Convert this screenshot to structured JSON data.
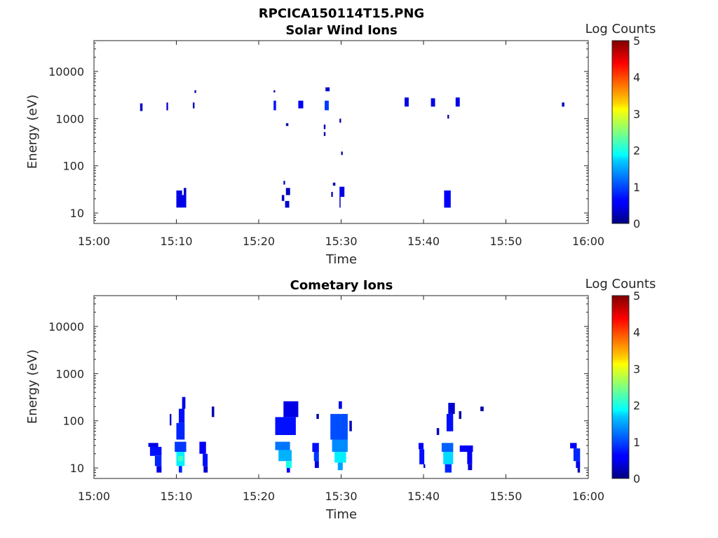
{
  "figure_title": "RPCICA150114T15.PNG",
  "colorbar": {
    "label": "Log Counts",
    "ticks": [
      "0",
      "1",
      "2",
      "3",
      "4",
      "5"
    ],
    "range": [
      0,
      5
    ],
    "colormap": "jet"
  },
  "chart_data": [
    {
      "type": "heatmap",
      "title": "Solar Wind Ions",
      "xlabel": "Time",
      "ylabel": "Energy (eV)",
      "x_ticklabels": [
        "15:00",
        "15:10",
        "15:20",
        "15:30",
        "15:40",
        "15:50",
        "16:00"
      ],
      "xlim_minutes": [
        0,
        60
      ],
      "y_ticklabels": [
        "10",
        "100",
        "1000",
        "10000"
      ],
      "ylim": [
        6,
        45000
      ],
      "yscale": "log",
      "cells": [
        [
          5.6,
          5.9,
          1700,
          2100,
          0.4
        ],
        [
          5.6,
          5.9,
          1450,
          1700,
          0.3
        ],
        [
          8.8,
          9.0,
          1500,
          2200,
          0.4
        ],
        [
          12.0,
          12.2,
          1650,
          2200,
          0.3
        ],
        [
          12.2,
          12.4,
          3500,
          4000,
          0.2
        ],
        [
          21.8,
          22.1,
          1500,
          2400,
          0.7
        ],
        [
          21.8,
          22.0,
          3600,
          4000,
          0.2
        ],
        [
          24.8,
          25.4,
          1650,
          2400,
          0.6
        ],
        [
          28.0,
          28.5,
          1500,
          2400,
          0.9
        ],
        [
          28.1,
          28.6,
          3800,
          4600,
          0.4
        ],
        [
          27.9,
          28.1,
          600,
          750,
          0.2
        ],
        [
          27.9,
          28.1,
          430,
          520,
          0.2
        ],
        [
          29.8,
          30.0,
          820,
          1000,
          0.2
        ],
        [
          30.0,
          30.2,
          170,
          200,
          0.2
        ],
        [
          23.3,
          23.6,
          700,
          800,
          0.2
        ],
        [
          37.7,
          38.2,
          1800,
          2800,
          0.5
        ],
        [
          40.9,
          41.4,
          1800,
          2700,
          0.5
        ],
        [
          42.9,
          43.1,
          1000,
          1200,
          0.2
        ],
        [
          43.9,
          44.4,
          1800,
          2800,
          0.5
        ],
        [
          56.8,
          57.1,
          1800,
          2200,
          0.3
        ],
        [
          10.0,
          10.7,
          24,
          30,
          0.5
        ],
        [
          10.0,
          11.2,
          13,
          24,
          0.5
        ],
        [
          10.9,
          11.2,
          24,
          34,
          0.4
        ],
        [
          22.8,
          23.1,
          18,
          24,
          0.3
        ],
        [
          23.2,
          23.7,
          13,
          18,
          0.4
        ],
        [
          23.3,
          23.8,
          24,
          34,
          0.3
        ],
        [
          23.0,
          23.2,
          40,
          48,
          0.2
        ],
        [
          28.8,
          29.0,
          22,
          28,
          0.2
        ],
        [
          29.0,
          29.3,
          38,
          44,
          0.2
        ],
        [
          29.8,
          30.4,
          22,
          36,
          0.5
        ],
        [
          29.8,
          29.9,
          13,
          22,
          0.3
        ],
        [
          42.5,
          43.3,
          13,
          30,
          0.6
        ]
      ]
    },
    {
      "type": "heatmap",
      "title": "Cometary Ions",
      "xlabel": "Time",
      "ylabel": "Energy (eV)",
      "x_ticklabels": [
        "15:00",
        "15:10",
        "15:20",
        "15:30",
        "15:40",
        "15:50",
        "16:00"
      ],
      "xlim_minutes": [
        0,
        60
      ],
      "y_ticklabels": [
        "10",
        "100",
        "1000",
        "10000"
      ],
      "ylim": [
        6,
        45000
      ],
      "yscale": "log",
      "cells": [
        [
          6.6,
          7.8,
          28,
          34,
          0.5
        ],
        [
          6.8,
          8.2,
          18,
          28,
          0.7
        ],
        [
          7.4,
          8.2,
          11,
          18,
          0.8
        ],
        [
          7.6,
          8.2,
          8,
          11,
          0.5
        ],
        [
          9.8,
          11.2,
          22,
          36,
          0.9
        ],
        [
          10.0,
          11.0,
          11,
          22,
          1.8
        ],
        [
          10.2,
          10.8,
          14,
          18,
          2.2
        ],
        [
          10.3,
          10.7,
          8,
          11,
          0.8
        ],
        [
          10.0,
          11.0,
          40,
          90,
          0.8
        ],
        [
          10.3,
          11.0,
          90,
          180,
          0.7
        ],
        [
          10.7,
          11.1,
          180,
          320,
          0.5
        ],
        [
          9.2,
          9.4,
          80,
          140,
          0.3
        ],
        [
          12.8,
          13.6,
          20,
          36,
          0.6
        ],
        [
          13.2,
          13.8,
          11,
          20,
          0.7
        ],
        [
          13.3,
          13.8,
          8,
          11,
          0.4
        ],
        [
          14.3,
          14.6,
          120,
          200,
          0.2
        ],
        [
          22.0,
          23.8,
          24,
          36,
          1.2
        ],
        [
          22.4,
          24.0,
          14,
          24,
          1.5
        ],
        [
          23.3,
          24.0,
          10,
          14,
          2.0
        ],
        [
          23.4,
          23.8,
          8,
          10,
          0.6
        ],
        [
          22.0,
          24.5,
          50,
          120,
          0.7
        ],
        [
          23.0,
          24.8,
          120,
          260,
          0.5
        ],
        [
          26.5,
          27.3,
          22,
          34,
          0.7
        ],
        [
          26.7,
          27.3,
          14,
          22,
          0.9
        ],
        [
          26.8,
          27.3,
          10,
          14,
          0.5
        ],
        [
          28.7,
          30.8,
          40,
          140,
          1.0
        ],
        [
          28.9,
          30.8,
          22,
          40,
          1.3
        ],
        [
          29.2,
          30.6,
          13,
          22,
          1.8
        ],
        [
          29.6,
          30.2,
          9,
          13,
          1.4
        ],
        [
          29.7,
          30.1,
          180,
          260,
          0.5
        ],
        [
          31.0,
          31.3,
          60,
          100,
          0.3
        ],
        [
          27.0,
          27.3,
          110,
          140,
          0.2
        ],
        [
          39.4,
          40.0,
          25,
          34,
          0.6
        ],
        [
          39.5,
          40.1,
          12,
          25,
          0.7
        ],
        [
          40.0,
          40.2,
          10,
          12,
          0.4
        ],
        [
          41.6,
          41.9,
          50,
          70,
          0.3
        ],
        [
          42.2,
          43.6,
          22,
          34,
          1.1
        ],
        [
          42.4,
          43.6,
          12,
          22,
          1.7
        ],
        [
          42.6,
          43.4,
          8,
          12,
          0.8
        ],
        [
          42.8,
          43.6,
          60,
          140,
          0.7
        ],
        [
          43.0,
          43.8,
          140,
          240,
          0.4
        ],
        [
          44.3,
          44.6,
          110,
          160,
          0.2
        ],
        [
          44.4,
          46.0,
          22,
          30,
          0.6
        ],
        [
          45.3,
          45.9,
          12,
          22,
          0.6
        ],
        [
          45.4,
          45.9,
          9,
          12,
          0.4
        ],
        [
          46.9,
          47.3,
          160,
          200,
          0.2
        ],
        [
          57.8,
          58.6,
          26,
          34,
          0.6
        ],
        [
          58.2,
          59.0,
          14,
          26,
          0.8
        ],
        [
          58.5,
          59.0,
          10,
          14,
          0.5
        ],
        [
          58.7,
          59.0,
          8,
          10,
          0.3
        ]
      ]
    }
  ]
}
